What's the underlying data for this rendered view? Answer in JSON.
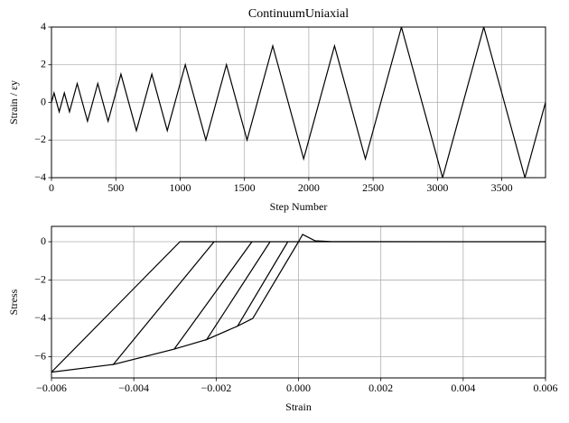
{
  "chart_data": [
    {
      "type": "line",
      "title": "ContinuumUniaxial",
      "x_label": "Step Number",
      "y_label": "Strain / εy",
      "x": [
        0,
        20,
        60,
        100,
        140,
        200,
        280,
        360,
        440,
        540,
        660,
        780,
        900,
        1040,
        1200,
        1360,
        1520,
        1720,
        1960,
        2200,
        2440,
        2720,
        3040,
        3360,
        3680,
        3840
      ],
      "series": [
        {
          "color": "#000000",
          "values": [
            0,
            0.5,
            -0.5,
            0.5,
            -0.5,
            1,
            -1,
            1,
            -1,
            1.5,
            -1.5,
            1.5,
            -1.5,
            2,
            -2,
            2,
            -2,
            3,
            -3,
            3,
            -3,
            4,
            -4,
            4,
            -4,
            0
          ]
        }
      ],
      "xlim": [
        0,
        3840
      ],
      "ylim": [
        -4,
        4
      ],
      "xticks": [
        0,
        500,
        1000,
        1500,
        2000,
        2500,
        3000,
        3500
      ],
      "yticks": [
        {
          "value": -4,
          "label": "−4"
        },
        {
          "value": -2,
          "label": "−2"
        },
        0,
        2,
        4
      ],
      "grid": true
    },
    {
      "type": "line",
      "x_label": "Strain",
      "y_label": "Stress",
      "x": [
        0,
        0.0001,
        0.0004,
        0.0008,
        0.0045,
        0,
        -0.00111,
        -0.00148,
        -0.00026,
        0.0045,
        -0.00026,
        -0.00148,
        -0.00223,
        -0.00069,
        0.006,
        -0.00069,
        -0.00223,
        -0.00302,
        -0.00113,
        0.006,
        -0.00113,
        -0.00302,
        -0.0045,
        -0.00205,
        0.006,
        -0.00205,
        -0.0045,
        -0.006,
        -0.00288,
        0.006
      ],
      "series": [
        {
          "color": "#000000",
          "values": [
            0,
            0.38,
            0.05,
            0.01,
            0,
            0,
            -4.0,
            -4.4,
            0,
            0,
            0,
            -4.4,
            -5.1,
            0,
            0,
            0,
            -5.1,
            -5.6,
            0,
            0,
            0,
            -5.6,
            -6.4,
            0,
            0,
            0,
            -6.4,
            -6.8,
            0,
            0
          ]
        }
      ],
      "xlim": [
        -0.006,
        0.006
      ],
      "ylim": [
        -7.1,
        0.8
      ],
      "xticks": [
        {
          "value": -0.006,
          "label": "−0.006"
        },
        {
          "value": -0.004,
          "label": "−0.004"
        },
        {
          "value": -0.002,
          "label": "−0.002"
        },
        {
          "value": 0,
          "label": "0.000"
        },
        {
          "value": 0.002,
          "label": "0.002"
        },
        {
          "value": 0.004,
          "label": "0.004"
        },
        {
          "value": 0.006,
          "label": "0.006"
        }
      ],
      "yticks": [
        {
          "value": -6,
          "label": "−6"
        },
        {
          "value": -4,
          "label": "−4"
        },
        {
          "value": -2,
          "label": "−2"
        },
        0
      ],
      "grid": true
    }
  ]
}
